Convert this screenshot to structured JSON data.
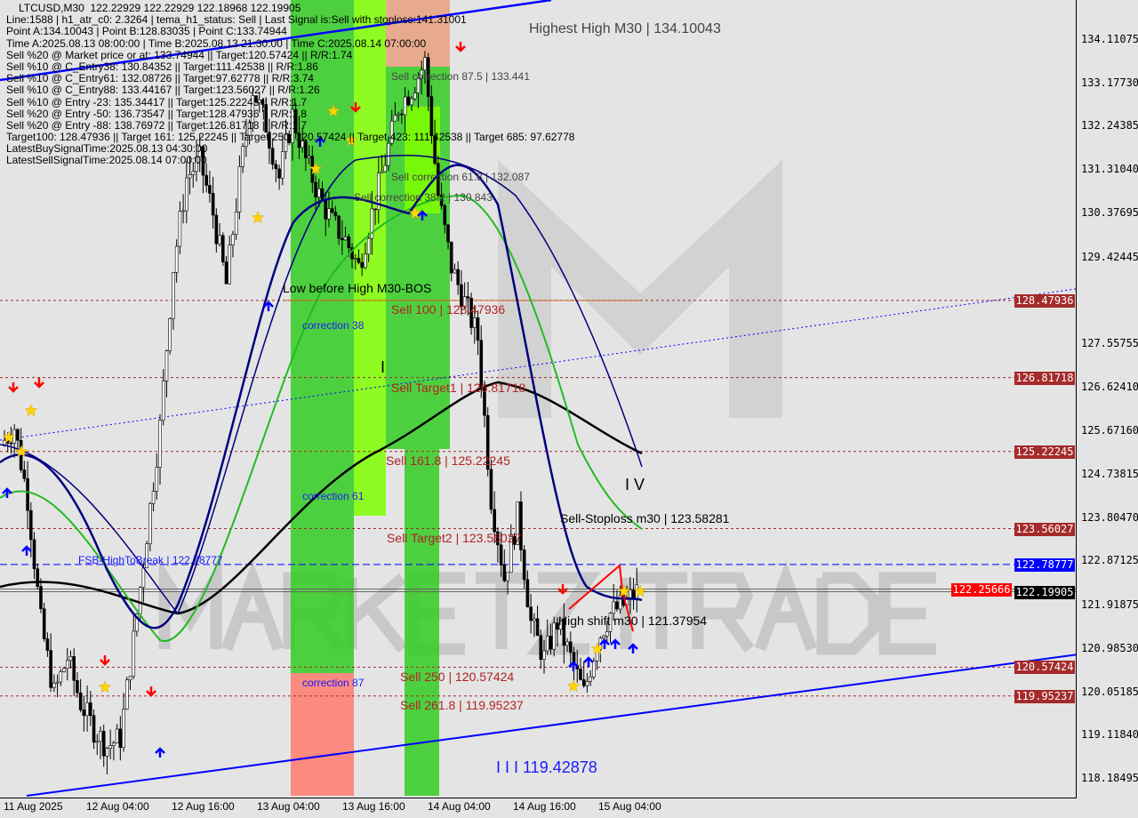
{
  "header": {
    "lines": [
      "LTCUSD,M30  122.22929 122.22929 122.18968 122.19905",
      "Line:1588 | h1_atr_c0: 2.3264 | tema_h1_status: Sell | Last Signal is:Sell with stoploss:141.31001",
      "Point A:134.10043 | Point B:128.83035 | Point C:133.74944",
      "Time A:2025.08.13 08:00:00 | Time B:2025.08.13 21:30:00 | Time C:2025.08.14 07:00:00",
      "Sell %20 @ Market price or at: 133.74944 || Target:120.57424 || R/R:1.74",
      "Sell %10 @ C_Entry38: 130.84352 || Target:111.42538 || R/R:1.86",
      "Sell %10 @ C_Entry61: 132.08726 || Target:97.62778 || R/R:3.74",
      "Sell %10 @ C_Entry88: 133.44167 || Target:123.56027 || R/R:1.26",
      "Sell %10 @ Entry -23: 135.34417 || Target:125.22245 || R/R:1.7",
      "Sell %20 @ Entry -50: 136.73547 || Target:128.47936 || R/R:1.8",
      "Sell %20 @ Entry -88: 138.76972 || Target:126.81718 || R/R:1.7",
      "Target100: 128.47936 || Target 161: 125.22245 || Target 250: 120.57424 || Target 423: 111.42538 || Target 685: 97.62778",
      "LatestBuySignalTime:2025.08.13 04:30:00",
      "LatestSellSignalTime:2025.08.14 07:00:00"
    ]
  },
  "annotations": {
    "highest_high": "Highest High   M30 | 134.10043",
    "corr875": "Sell correction 87.5 | 133.441",
    "corr618": "Sell correction 61.8 | 132.087",
    "corr382": "Sell correction 38.2 | 130.843",
    "low_before_high": "Low before High   M30-BOS",
    "sell100": "Sell 100 | 128.47936",
    "correction38": "correction 38",
    "wave1": "I",
    "target1": "Sell Target1 | 126.81718",
    "sell1618": "Sell 161.8 | 125.22245",
    "correction61": "correction 61",
    "wave5": "I V",
    "stoploss": "Sell-Stoploss m30 | 123.58281",
    "target2": "Sell Target2 | 123.56027",
    "fsb": "FSB-HighToBreak | 122.78777",
    "high_shift": "High shift m30 | 121.37954",
    "sell250": "Sell  250 | 120.57424",
    "correction87": "correction 87",
    "sell2618": "Sell  261.8 | 119.95237",
    "wave3": "I I I 119.42878",
    "watermark": "MARKETZITRADE"
  },
  "price_tags": [
    {
      "value": "128.47936",
      "color": "#a52a2a"
    },
    {
      "value": "126.81718",
      "color": "#a52a2a"
    },
    {
      "value": "125.22245",
      "color": "#a52a2a"
    },
    {
      "value": "123.56027",
      "color": "#a52a2a"
    },
    {
      "value": "122.78777",
      "color": "#0000ff"
    },
    {
      "value": "122.25666",
      "color": "#ff0000"
    },
    {
      "value": "122.19905",
      "color": "#000000"
    },
    {
      "value": "120.57424",
      "color": "#a52a2a"
    },
    {
      "value": "119.95237",
      "color": "#a52a2a"
    }
  ],
  "chart_data": {
    "type": "candlestick",
    "symbol": "LTCUSD,M30",
    "ylim": [
      118.18495,
      134.11075
    ],
    "y_ticks": [
      "134.11075",
      "133.17730",
      "132.24385",
      "131.31040",
      "130.37695",
      "129.42445",
      "127.55755",
      "126.62410",
      "125.67160",
      "124.73815",
      "123.80470",
      "122.87125",
      "121.91875",
      "120.98530",
      "120.05185",
      "119.11840",
      "118.18495"
    ],
    "x_ticks": [
      "11 Aug 2025",
      "12 Aug 04:00",
      "12 Aug 16:00",
      "13 Aug 04:00",
      "13 Aug 16:00",
      "14 Aug 04:00",
      "14 Aug 16:00",
      "15 Aug 04:00"
    ],
    "close_path": [
      125.37,
      125.75,
      124.22,
      121.54,
      120.0,
      120.77,
      119.81,
      119.24,
      118.86,
      119.05,
      121.15,
      123.45,
      125.75,
      129.2,
      131.12,
      131.5,
      130.35,
      128.82,
      131.12,
      133.04,
      132.27,
      131.12,
      132.46,
      131.5,
      130.74,
      130.16,
      129.78,
      129.2,
      130.35,
      131.5,
      132.65,
      133.04,
      133.61,
      130.74,
      129.2,
      128.44,
      127.67,
      124.22,
      122.5,
      123.84,
      121.54,
      120.77,
      121.54,
      120.77,
      120.0,
      121.15,
      121.73,
      121.92,
      122.2
    ],
    "horizontal_levels": [
      128.47936,
      126.81718,
      125.22245,
      123.56027,
      122.78777,
      122.25666,
      122.19905,
      120.57424,
      119.95237
    ],
    "colors": {
      "bull": "#000000",
      "bear": "#000000",
      "ma_black": "#000000",
      "ma_green": "#22bb22",
      "ma_navy": "#000080",
      "trend": "#0000ff",
      "levels": "#a52a2a"
    }
  }
}
